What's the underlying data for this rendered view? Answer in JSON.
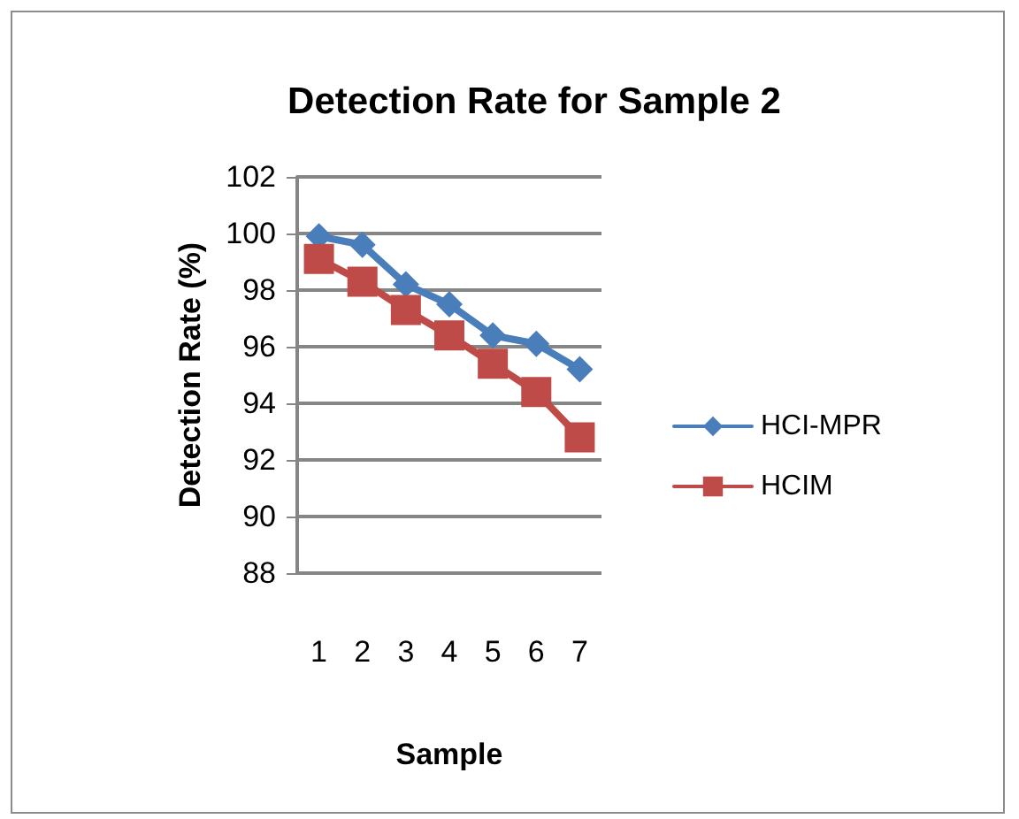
{
  "chart_data": {
    "type": "line",
    "title": "Detection Rate for Sample 2",
    "xlabel": "Sample",
    "ylabel": "Detection Rate (%)",
    "categories": [
      "1",
      "2",
      "3",
      "4",
      "5",
      "6",
      "7"
    ],
    "series": [
      {
        "name": "HCI-MPR",
        "color": "#4a7ebb",
        "marker": "diamond",
        "values": [
          99.9,
          99.6,
          98.2,
          97.5,
          96.4,
          96.1,
          95.2
        ]
      },
      {
        "name": "HCIM",
        "color": "#be4b48",
        "marker": "square",
        "values": [
          99.1,
          98.3,
          97.3,
          96.4,
          95.4,
          94.4,
          92.8
        ]
      }
    ],
    "ylim": [
      88,
      102
    ],
    "yticks": [
      88,
      90,
      92,
      94,
      96,
      98,
      100,
      102
    ],
    "grid": "y",
    "legend": "right",
    "line_style": "solid"
  }
}
